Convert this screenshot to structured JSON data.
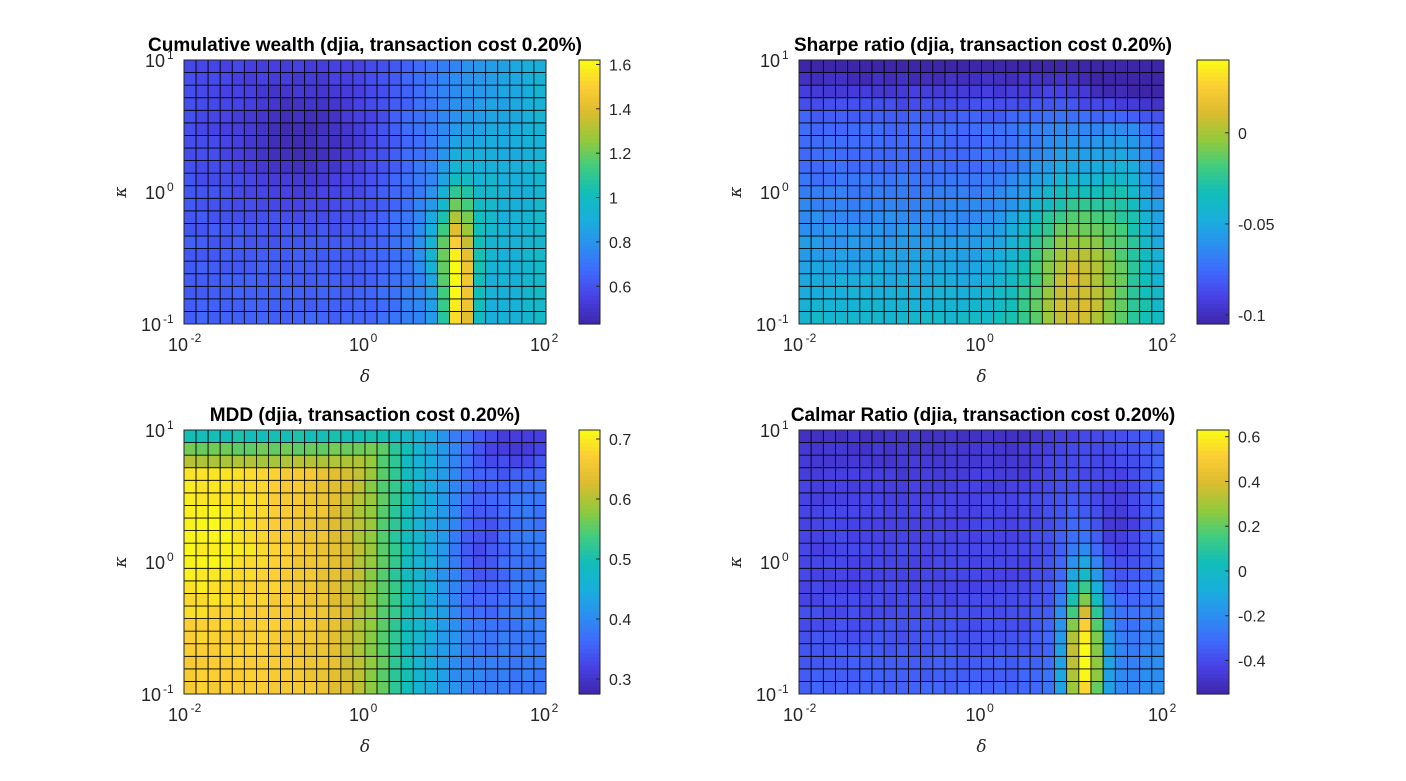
{
  "chart_data": [
    {
      "type": "heatmap",
      "id": "wealth",
      "title": "Cumulative wealth (djia, transaction cost 0.20%)",
      "xlabel": "δ",
      "ylabel": "κ",
      "x_scale": "log",
      "y_scale": "log",
      "xlim": [
        0.01,
        100
      ],
      "ylim": [
        0.1,
        10
      ],
      "x_ticks": [
        {
          "base": "10",
          "exp": "-2"
        },
        {
          "base": "10",
          "exp": "0"
        },
        {
          "base": "10",
          "exp": "2"
        }
      ],
      "y_ticks": [
        {
          "base": "10",
          "exp": "-1"
        },
        {
          "base": "10",
          "exp": "0"
        },
        {
          "base": "10",
          "exp": "1"
        }
      ],
      "grid_cols": 30,
      "grid_rows": 21,
      "clim": [
        0.43,
        1.62
      ],
      "colorbar_ticks": [
        {
          "v": 0.6,
          "label": "0.6"
        },
        {
          "v": 0.8,
          "label": "0.8"
        },
        {
          "v": 1.0,
          "label": "1"
        },
        {
          "v": 1.2,
          "label": "1.2"
        },
        {
          "v": 1.4,
          "label": "1.4"
        },
        {
          "v": 1.6,
          "label": "1.6"
        }
      ],
      "model": {
        "base": 0.6,
        "dip_amp": -0.14,
        "dip_cx": 0.32,
        "dip_cy": 0.7,
        "dip_sx": 0.14,
        "dip_sy": 0.18,
        "tail_start": 0.5,
        "tail_amp": 0.35,
        "top_amp": 0.02,
        "bottom_amp": 0.05,
        "peak_amp": 0.85,
        "peak_cx": 0.76,
        "peak_cy": 0.15,
        "peak_sx": 0.03,
        "peak_sy": 0.25
      }
    },
    {
      "type": "heatmap",
      "id": "sharpe",
      "title": "Sharpe ratio (djia, transaction cost 0.20%)",
      "xlabel": "δ",
      "ylabel": "κ",
      "x_scale": "log",
      "y_scale": "log",
      "xlim": [
        0.01,
        100
      ],
      "ylim": [
        0.1,
        10
      ],
      "x_ticks": [
        {
          "base": "10",
          "exp": "-2"
        },
        {
          "base": "10",
          "exp": "0"
        },
        {
          "base": "10",
          "exp": "2"
        }
      ],
      "y_ticks": [
        {
          "base": "10",
          "exp": "-1"
        },
        {
          "base": "10",
          "exp": "0"
        },
        {
          "base": "10",
          "exp": "1"
        }
      ],
      "grid_cols": 30,
      "grid_rows": 21,
      "clim": [
        -0.105,
        0.04
      ],
      "colorbar_ticks": [
        {
          "v": -0.1,
          "label": "-0.1"
        },
        {
          "v": -0.05,
          "label": "-0.05"
        },
        {
          "v": 0,
          "label": "0"
        }
      ],
      "model": {
        "base": -0.075,
        "top_amp": -0.035,
        "bottom_amp": 0.06,
        "ridge_amp": 0.06,
        "ridge_cx": 0.76,
        "ridge_cy": 0.2,
        "ridge_sx": 0.1,
        "ridge_sy": 0.3
      }
    },
    {
      "type": "heatmap",
      "id": "mdd",
      "title": "MDD (djia, transaction cost 0.20%)",
      "xlabel": "δ",
      "ylabel": "κ",
      "x_scale": "log",
      "y_scale": "log",
      "xlim": [
        0.01,
        100
      ],
      "ylim": [
        0.1,
        10
      ],
      "x_ticks": [
        {
          "base": "10",
          "exp": "-2"
        },
        {
          "base": "10",
          "exp": "0"
        },
        {
          "base": "10",
          "exp": "2"
        }
      ],
      "y_ticks": [
        {
          "base": "10",
          "exp": "-1"
        },
        {
          "base": "10",
          "exp": "0"
        },
        {
          "base": "10",
          "exp": "1"
        }
      ],
      "grid_cols": 30,
      "grid_rows": 21,
      "clim": [
        0.275,
        0.715
      ],
      "colorbar_ticks": [
        {
          "v": 0.3,
          "label": "0.3"
        },
        {
          "v": 0.4,
          "label": "0.4"
        },
        {
          "v": 0.5,
          "label": "0.5"
        },
        {
          "v": 0.6,
          "label": "0.6"
        },
        {
          "v": 0.7,
          "label": "0.7"
        }
      ],
      "model": {
        "left_val": 0.67,
        "right_val": 0.38,
        "x_edge": 0.58,
        "x_soft": 0.08,
        "top_rows": 3,
        "top_vals": [
          0.5,
          0.56,
          0.6
        ],
        "hot_amp": 0.04,
        "hot_cx": 0.05,
        "hot_cy": 0.6,
        "hot_sx": 0.12,
        "hot_sy": 0.2,
        "dark_amp": -0.08,
        "dark_cx": 0.92,
        "dark_cy": 0.95,
        "dark_sx": 0.1,
        "dark_sy": 0.08
      }
    },
    {
      "type": "heatmap",
      "id": "calmar",
      "title": "Calmar Ratio (djia, transaction cost 0.20%)",
      "xlabel": "δ",
      "ylabel": "κ",
      "x_scale": "log",
      "y_scale": "log",
      "xlim": [
        0.01,
        100
      ],
      "ylim": [
        0.1,
        10
      ],
      "x_ticks": [
        {
          "base": "10",
          "exp": "-2"
        },
        {
          "base": "10",
          "exp": "0"
        },
        {
          "base": "10",
          "exp": "2"
        }
      ],
      "y_ticks": [
        {
          "base": "10",
          "exp": "-1"
        },
        {
          "base": "10",
          "exp": "0"
        },
        {
          "base": "10",
          "exp": "1"
        }
      ],
      "grid_cols": 30,
      "grid_rows": 21,
      "clim": [
        -0.55,
        0.63
      ],
      "colorbar_ticks": [
        {
          "v": -0.4,
          "label": "-0.4"
        },
        {
          "v": -0.2,
          "label": "-0.2"
        },
        {
          "v": 0,
          "label": "0"
        },
        {
          "v": 0.2,
          "label": "0.2"
        },
        {
          "v": 0.4,
          "label": "0.4"
        },
        {
          "v": 0.6,
          "label": "0.6"
        }
      ],
      "model": {
        "base": -0.42,
        "top_amp": -0.08,
        "bottom_amp": 0.12,
        "right_amp": 0.15,
        "right_start": 0.6,
        "peak_amp": 0.95,
        "peak_cx": 0.78,
        "peak_cy": 0.15,
        "peak_sx": 0.035,
        "peak_sy": 0.22,
        "dark_amp": -0.15,
        "dark_cx": 0.88,
        "dark_cy": 0.65,
        "dark_sx": 0.06,
        "dark_sy": 0.15
      }
    }
  ]
}
